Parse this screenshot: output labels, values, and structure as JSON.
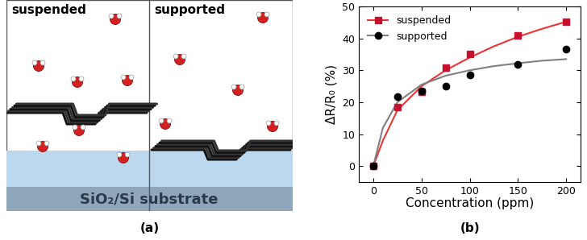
{
  "diagram": {
    "panel_label": "(a)",
    "left_label": "suspended",
    "right_label": "supported",
    "substrate_label": "SiO₂/Si substrate"
  },
  "chart_data": {
    "type": "scatter",
    "panel_label": "(b)",
    "x_label": "Concentration (ppm)",
    "y_label": "ΔR/R₀ (%)",
    "x": [
      0,
      25,
      50,
      75,
      100,
      150,
      200
    ],
    "series": [
      {
        "name": "suspended",
        "color": "#c8102e",
        "marker": "square",
        "values": [
          0,
          18.5,
          23.2,
          30.7,
          35.0,
          41.0,
          45.2
        ],
        "fit": {
          "color": "#ee3333",
          "x": [
            0,
            10,
            25,
            50,
            75,
            100,
            125,
            150,
            175,
            200
          ],
          "values": [
            0,
            8,
            17.5,
            25,
            30,
            34,
            37.5,
            40.5,
            43,
            45.2
          ]
        }
      },
      {
        "name": "supported",
        "color": "#000000",
        "marker": "circle",
        "values": [
          0,
          21.8,
          23.5,
          25.0,
          28.6,
          31.9,
          36.7
        ],
        "fit": {
          "color": "#808080",
          "x": [
            0,
            10,
            25,
            50,
            75,
            100,
            125,
            150,
            175,
            200
          ],
          "values": [
            0,
            12,
            20,
            25.5,
            28.3,
            30,
            31.3,
            32.2,
            33,
            33.5
          ]
        }
      }
    ],
    "xlim": [
      -15,
      215
    ],
    "xticks": [
      0,
      50,
      100,
      150,
      200
    ],
    "ylim": [
      -5,
      50
    ],
    "yticks": [
      0,
      10,
      20,
      30,
      40,
      50
    ],
    "legend": "upper left",
    "grid": false
  }
}
